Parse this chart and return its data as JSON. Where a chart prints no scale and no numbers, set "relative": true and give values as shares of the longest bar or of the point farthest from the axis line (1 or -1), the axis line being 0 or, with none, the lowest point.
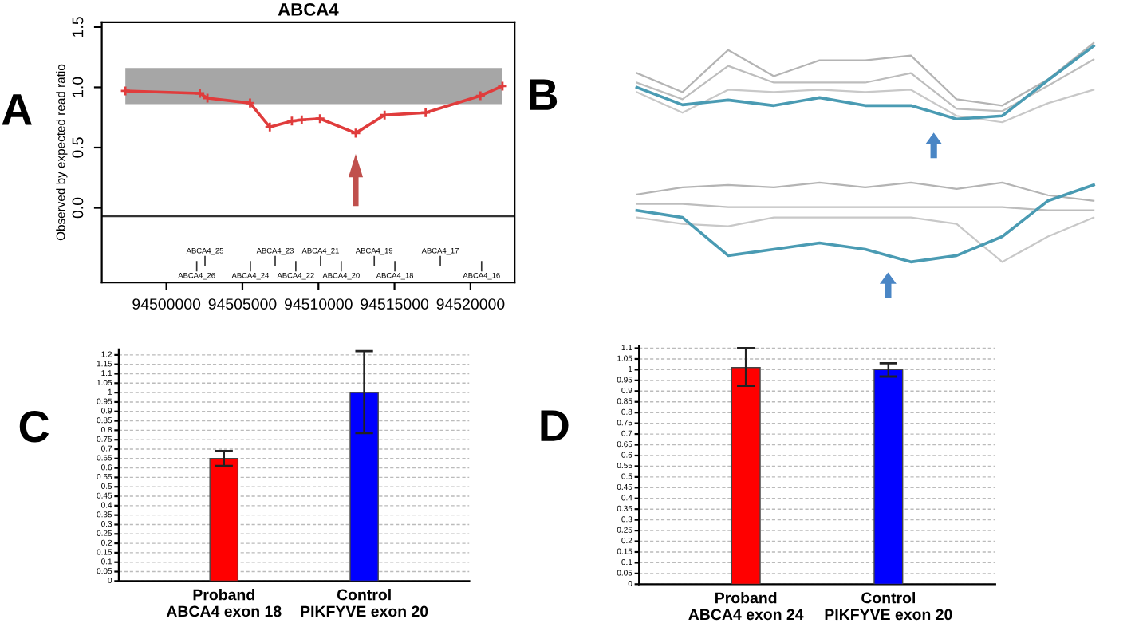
{
  "chart_data": [
    {
      "type": "line",
      "title": "ABCA4",
      "ylabel": "Observed by expected read ratio",
      "marker": "cross",
      "line_style": "solid",
      "grid": false,
      "x": [
        94497300,
        94502200,
        94502700,
        94505500,
        94506800,
        94508250,
        94508900,
        94510100,
        94512450,
        94514350,
        94517050,
        94520650,
        94522100
      ],
      "series": [
        {
          "color": "#e03c3c",
          "values": [
            0.97,
            0.95,
            0.91,
            0.87,
            0.67,
            0.72,
            0.73,
            0.74,
            0.62,
            0.77,
            0.79,
            0.93,
            1.01
          ]
        }
      ],
      "xlim": [
        94495750,
        94522900
      ],
      "ylim": [
        -0.62,
        1.54
      ],
      "xticks": [
        94500000,
        94505000,
        94510000,
        94515000,
        94520000
      ],
      "yticks": [
        {
          "value": 0,
          "label": "0.0"
        },
        {
          "value": 0.5,
          "label": "0.5"
        },
        {
          "value": 1,
          "label": "1.0"
        },
        {
          "value": 1.5,
          "label": "1.5"
        }
      ],
      "bands": [
        {
          "axis": "y",
          "from": 0.86,
          "to": 1.16,
          "color": "#a6a6a6"
        }
      ],
      "ref_lines": [
        {
          "axis": "y",
          "value": -0.07,
          "color": "#333333"
        }
      ],
      "annotations": [
        "A",
        "ABCA4_25",
        "ABCA4_23",
        "ABCA4_21",
        "ABCA4_19",
        "ABCA4_17",
        "ABCA4_26",
        "ABCA4_24",
        "ABCA4_22",
        "ABCA4_20",
        "ABCA4_18",
        "ABCA4_16"
      ]
    },
    {
      "type": "line",
      "relative": true,
      "tick_labels": false,
      "grid": false,
      "categories": [
        null,
        null,
        null,
        null,
        null,
        null,
        null,
        null,
        null,
        null,
        null
      ],
      "series": [
        {
          "color": "#b4b4b4",
          "values": [
            0.62,
            0.38,
            0.91,
            0.58,
            0.78,
            0.78,
            0.84,
            0.29,
            0.21,
            0.54,
            1
          ]
        },
        {
          "color": "#bdbdbd",
          "values": [
            0.5,
            0.29,
            0.71,
            0.5,
            0.5,
            0.5,
            0.62,
            0.17,
            0.14,
            0.46,
            0.79
          ]
        },
        {
          "color": "#c8c8c8",
          "values": [
            0.38,
            0.12,
            0.41,
            0.38,
            0.41,
            0.38,
            0.41,
            0.08,
            0,
            0.24,
            0.41
          ]
        },
        {
          "color": "#4a9bb3",
          "values": [
            0.44,
            0.22,
            0.28,
            0.21,
            0.31,
            0.21,
            0.21,
            0.04,
            0.08,
            0.53,
            0.96
          ]
        }
      ],
      "annotations": [
        "B"
      ]
    },
    {
      "type": "line",
      "relative": true,
      "tick_labels": false,
      "grid": false,
      "categories": [
        null,
        null,
        null,
        null,
        null,
        null,
        null,
        null,
        null,
        null,
        null
      ],
      "series": [
        {
          "color": "#b4b4b4",
          "values": [
            0.85,
            0.94,
            0.97,
            0.94,
            1,
            0.94,
            1,
            0.92,
            1,
            0.84,
            0.77
          ]
        },
        {
          "color": "#bdbdbd",
          "values": [
            0.73,
            0.73,
            0.69,
            0.69,
            0.69,
            0.69,
            0.69,
            0.69,
            0.69,
            0.65,
            0.65
          ]
        },
        {
          "color": "#c8c8c8",
          "values": [
            0.56,
            0.48,
            0.45,
            0.56,
            0.56,
            0.56,
            0.56,
            0.48,
            0,
            0.32,
            0.56
          ]
        },
        {
          "color": "#4a9bb3",
          "values": [
            0.65,
            0.56,
            0.08,
            0.16,
            0.24,
            0.16,
            0,
            0.08,
            0.32,
            0.77,
            0.97
          ]
        }
      ]
    },
    {
      "type": "bar",
      "categories": [
        "Proband\nABCA4 exon 18",
        "Control\nPIKFYVE exon 20"
      ],
      "values": [
        0.65,
        1.0
      ],
      "colors": [
        "#ff0000",
        "#0000ff"
      ],
      "errors": [
        [
          0.61,
          0.69
        ],
        [
          0.785,
          1.22
        ]
      ],
      "ylim": [
        0,
        1.23
      ],
      "grid": "y",
      "yticks": [
        0,
        0.05,
        0.1,
        0.15,
        0.2,
        0.25,
        0.3,
        0.35,
        0.4,
        0.45,
        0.5,
        0.55,
        0.6,
        0.65,
        0.7,
        0.75,
        0.8,
        0.85,
        0.9,
        0.95,
        1,
        1.05,
        1.1,
        1.15,
        1.2
      ],
      "annotations": [
        "C"
      ]
    },
    {
      "type": "bar",
      "categories": [
        "Proband\nABCA4 exon 24",
        "Control\nPIKFYVE exon 20"
      ],
      "values": [
        1.01,
        1.0
      ],
      "colors": [
        "#ff0000",
        "#0000ff"
      ],
      "errors": [
        [
          0.925,
          1.1
        ],
        [
          0.968,
          1.03
        ]
      ],
      "ylim": [
        0,
        1.11
      ],
      "grid": "y",
      "yticks": [
        0,
        0.05,
        0.1,
        0.15,
        0.2,
        0.25,
        0.3,
        0.35,
        0.4,
        0.45,
        0.5,
        0.55,
        0.6,
        0.65,
        0.7,
        0.75,
        0.8,
        0.85,
        0.9,
        0.95,
        1,
        1.05,
        1.1
      ],
      "annotations": [
        "D"
      ]
    }
  ]
}
